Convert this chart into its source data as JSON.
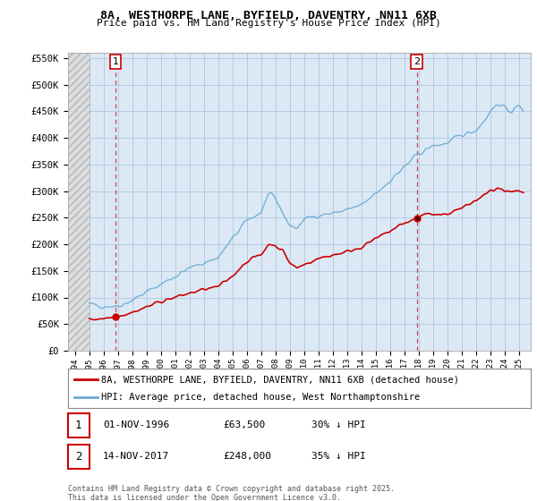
{
  "title_line1": "8A, WESTHORPE LANE, BYFIELD, DAVENTRY, NN11 6XB",
  "title_line2": "Price paid vs. HM Land Registry's House Price Index (HPI)",
  "bg_color": "#ffffff",
  "plot_bg_color": "#dce9f5",
  "hatch_bg_color": "#e8e8e8",
  "grid_color": "#aec6e0",
  "sale1": {
    "date_num": 1996.84,
    "price": 63500,
    "label": "1",
    "date_str": "01-NOV-1996",
    "pct": "30% ↓ HPI"
  },
  "sale2": {
    "date_num": 2017.87,
    "price": 248000,
    "label": "2",
    "date_str": "14-NOV-2017",
    "pct": "35% ↓ HPI"
  },
  "hpi_color": "#6aabd2",
  "price_color": "#cc0000",
  "vline_color": "#cc4444",
  "ylim": [
    0,
    560000
  ],
  "xlim": [
    1993.5,
    2025.8
  ],
  "ytick_vals": [
    0,
    50000,
    100000,
    150000,
    200000,
    250000,
    300000,
    350000,
    400000,
    450000,
    500000,
    550000
  ],
  "ytick_labels": [
    "£0",
    "£50K",
    "£100K",
    "£150K",
    "£200K",
    "£250K",
    "£300K",
    "£350K",
    "£400K",
    "£450K",
    "£500K",
    "£550K"
  ],
  "legend_label1": "8A, WESTHORPE LANE, BYFIELD, DAVENTRY, NN11 6XB (detached house)",
  "legend_label2": "HPI: Average price, detached house, West Northamptonshire",
  "footer": "Contains HM Land Registry data © Crown copyright and database right 2025.\nThis data is licensed under the Open Government Licence v3.0.",
  "hatch_end_year": 1995.0
}
